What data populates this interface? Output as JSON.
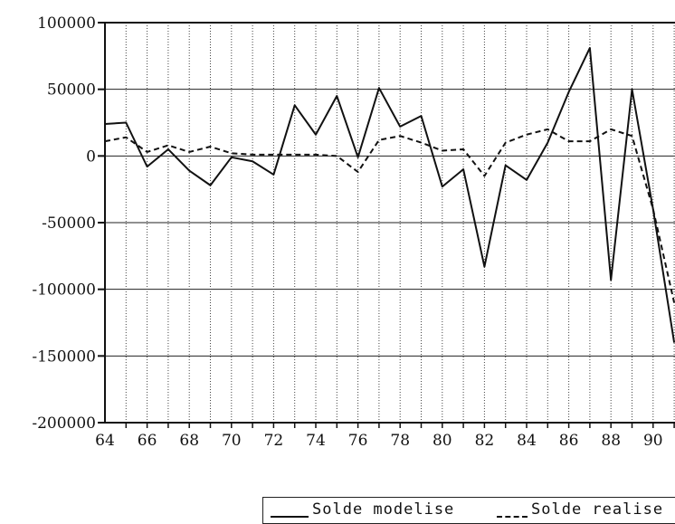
{
  "chart_data": {
    "type": "line",
    "x": [
      64,
      65,
      66,
      67,
      68,
      69,
      70,
      71,
      72,
      73,
      74,
      75,
      76,
      77,
      78,
      79,
      80,
      81,
      82,
      83,
      84,
      85,
      86,
      87,
      88,
      89,
      90,
      91
    ],
    "xticks": [
      "64",
      "66",
      "68",
      "70",
      "72",
      "74",
      "76",
      "78",
      "80",
      "82",
      "84",
      "86",
      "88",
      "90"
    ],
    "yticks": [
      "100000",
      "50000",
      "0",
      "-50000",
      "-100000",
      "-150000",
      "-200000"
    ],
    "ylim": [
      -200000,
      100000
    ],
    "xlim": [
      64,
      91
    ],
    "grid": true,
    "legend_position": "bottom-right",
    "series": [
      {
        "name": "Solde modelise",
        "style": "solid",
        "values": [
          24000,
          25000,
          -8000,
          5000,
          -11000,
          -22000,
          -1000,
          -4000,
          -14000,
          38000,
          16000,
          45000,
          -1000,
          51000,
          22000,
          30000,
          -23000,
          -10000,
          -83000,
          -7000,
          -18000,
          10000,
          48000,
          81000,
          -93000,
          50000,
          -40000,
          -140000
        ]
      },
      {
        "name": "Solde realise",
        "style": "dashed",
        "values": [
          11000,
          14000,
          3000,
          8000,
          3000,
          7000,
          2000,
          1000,
          1000,
          1000,
          1000,
          0,
          -12000,
          12000,
          15000,
          10000,
          4000,
          5000,
          -15000,
          10000,
          16000,
          20000,
          11000,
          11000,
          20000,
          15000,
          -40000,
          -110000
        ]
      }
    ]
  }
}
